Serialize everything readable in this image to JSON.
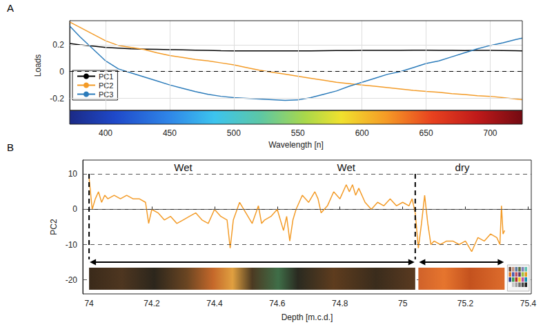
{
  "chart_data": [
    {
      "type": "line",
      "panel_label": "A",
      "x_label": "Wavelength [n]",
      "y_label": "Loads",
      "xlim": [
        372,
        725
      ],
      "xticks": [
        400,
        450,
        500,
        550,
        600,
        650,
        700
      ],
      "ylim": [
        -0.29,
        0.38
      ],
      "yticks": [
        -0.2,
        0,
        0.2
      ],
      "grid": true,
      "legend": "lower left",
      "hlines": [
        0
      ],
      "x": [
        372,
        380,
        390,
        400,
        410,
        420,
        430,
        440,
        450,
        460,
        470,
        480,
        490,
        500,
        510,
        520,
        530,
        540,
        550,
        560,
        570,
        580,
        590,
        600,
        610,
        620,
        630,
        640,
        650,
        660,
        670,
        680,
        690,
        700,
        710,
        720,
        725
      ],
      "series": [
        {
          "name": "PC1",
          "color": "#000000",
          "values": [
            0.21,
            0.2,
            0.19,
            0.18,
            0.175,
            0.17,
            0.168,
            0.166,
            0.164,
            0.162,
            0.16,
            0.158,
            0.156,
            0.155,
            0.155,
            0.155,
            0.154,
            0.154,
            0.154,
            0.155,
            0.156,
            0.157,
            0.157,
            0.158,
            0.158,
            0.159,
            0.159,
            0.16,
            0.16,
            0.159,
            0.158,
            0.157,
            0.158,
            0.158,
            0.157,
            0.156,
            0.155
          ]
        },
        {
          "name": "PC2",
          "color": "#f39b27",
          "values": [
            0.37,
            0.33,
            0.28,
            0.23,
            0.195,
            0.18,
            0.165,
            0.14,
            0.12,
            0.105,
            0.09,
            0.08,
            0.065,
            0.05,
            0.03,
            0.01,
            -0.005,
            -0.02,
            -0.035,
            -0.05,
            -0.065,
            -0.08,
            -0.09,
            -0.1,
            -0.11,
            -0.12,
            -0.13,
            -0.14,
            -0.148,
            -0.155,
            -0.165,
            -0.172,
            -0.18,
            -0.185,
            -0.195,
            -0.205,
            -0.21
          ]
        },
        {
          "name": "PC3",
          "color": "#2b7bba",
          "values": [
            0.34,
            0.26,
            0.17,
            0.08,
            0.02,
            -0.01,
            -0.04,
            -0.07,
            -0.1,
            -0.125,
            -0.15,
            -0.17,
            -0.185,
            -0.195,
            -0.2,
            -0.205,
            -0.21,
            -0.215,
            -0.212,
            -0.195,
            -0.17,
            -0.145,
            -0.11,
            -0.08,
            -0.05,
            -0.02,
            0,
            0.03,
            0.06,
            0.08,
            0.11,
            0.14,
            0.17,
            0.195,
            0.215,
            0.24,
            0.25
          ]
        }
      ]
    },
    {
      "type": "line",
      "panel_label": "B",
      "x_label": "Depth [m.c.d.]",
      "y_label": "PC2",
      "xlim": [
        73.98,
        75.41
      ],
      "xticks": [
        74,
        74.2,
        74.4,
        74.6,
        74.8,
        75,
        75.2,
        75.4
      ],
      "ylim": [
        -24,
        14
      ],
      "yticks": [
        -20,
        -10,
        0,
        10
      ],
      "grid": "y",
      "boundaries": [
        74.0,
        75.04
      ],
      "spans": [
        [
          74.0,
          75.04
        ],
        [
          75.05,
          75.325
        ]
      ],
      "annotations": [
        {
          "text": "Wet",
          "x": 74.3
        },
        {
          "text": "Wet",
          "x": 74.82
        },
        {
          "text": "dry",
          "x": 75.19
        }
      ],
      "x": [
        74.0,
        74.01,
        74.02,
        74.03,
        74.04,
        74.05,
        74.06,
        74.08,
        74.1,
        74.12,
        74.14,
        74.16,
        74.18,
        74.19,
        74.2,
        74.22,
        74.24,
        74.26,
        74.28,
        74.3,
        74.32,
        74.34,
        74.36,
        74.38,
        74.4,
        74.42,
        74.44,
        74.45,
        74.46,
        74.48,
        74.5,
        74.52,
        74.54,
        74.55,
        74.56,
        74.58,
        74.6,
        74.62,
        74.63,
        74.64,
        74.65,
        74.66,
        74.68,
        74.7,
        74.72,
        74.73,
        74.74,
        74.76,
        74.78,
        74.8,
        74.82,
        74.83,
        74.84,
        74.85,
        74.86,
        74.88,
        74.9,
        74.92,
        74.94,
        74.96,
        74.98,
        75.0,
        75.02,
        75.03,
        75.04,
        75.05,
        75.06,
        75.07,
        75.08,
        75.09,
        75.1,
        75.12,
        75.14,
        75.16,
        75.18,
        75.2,
        75.22,
        75.24,
        75.26,
        75.28,
        75.3,
        75.31,
        75.315,
        75.32,
        75.325
      ],
      "series": [
        {
          "color": "#f39b27",
          "values": [
            9,
            0,
            3,
            5,
            2,
            4,
            3,
            4,
            3,
            4,
            3,
            3,
            2,
            -4,
            0,
            -1,
            -3,
            -2,
            -4,
            -3,
            -2,
            -1,
            -3,
            -4,
            0,
            -2,
            -3,
            -11,
            -3,
            2,
            -1,
            -4,
            1,
            -4,
            -3,
            -2,
            0,
            -6,
            -2,
            -9,
            -3,
            0,
            4,
            2,
            5,
            3,
            -1,
            1,
            5,
            3,
            7,
            5,
            7,
            4,
            6,
            2,
            0,
            2,
            1,
            3,
            1,
            2,
            1,
            3,
            -1,
            -11,
            -4,
            4,
            -4,
            -10,
            -9,
            -10,
            -9,
            -9,
            -10,
            -9,
            -12,
            -8,
            -9,
            -7,
            -8,
            -10,
            1,
            -7,
            -6
          ]
        }
      ]
    }
  ]
}
